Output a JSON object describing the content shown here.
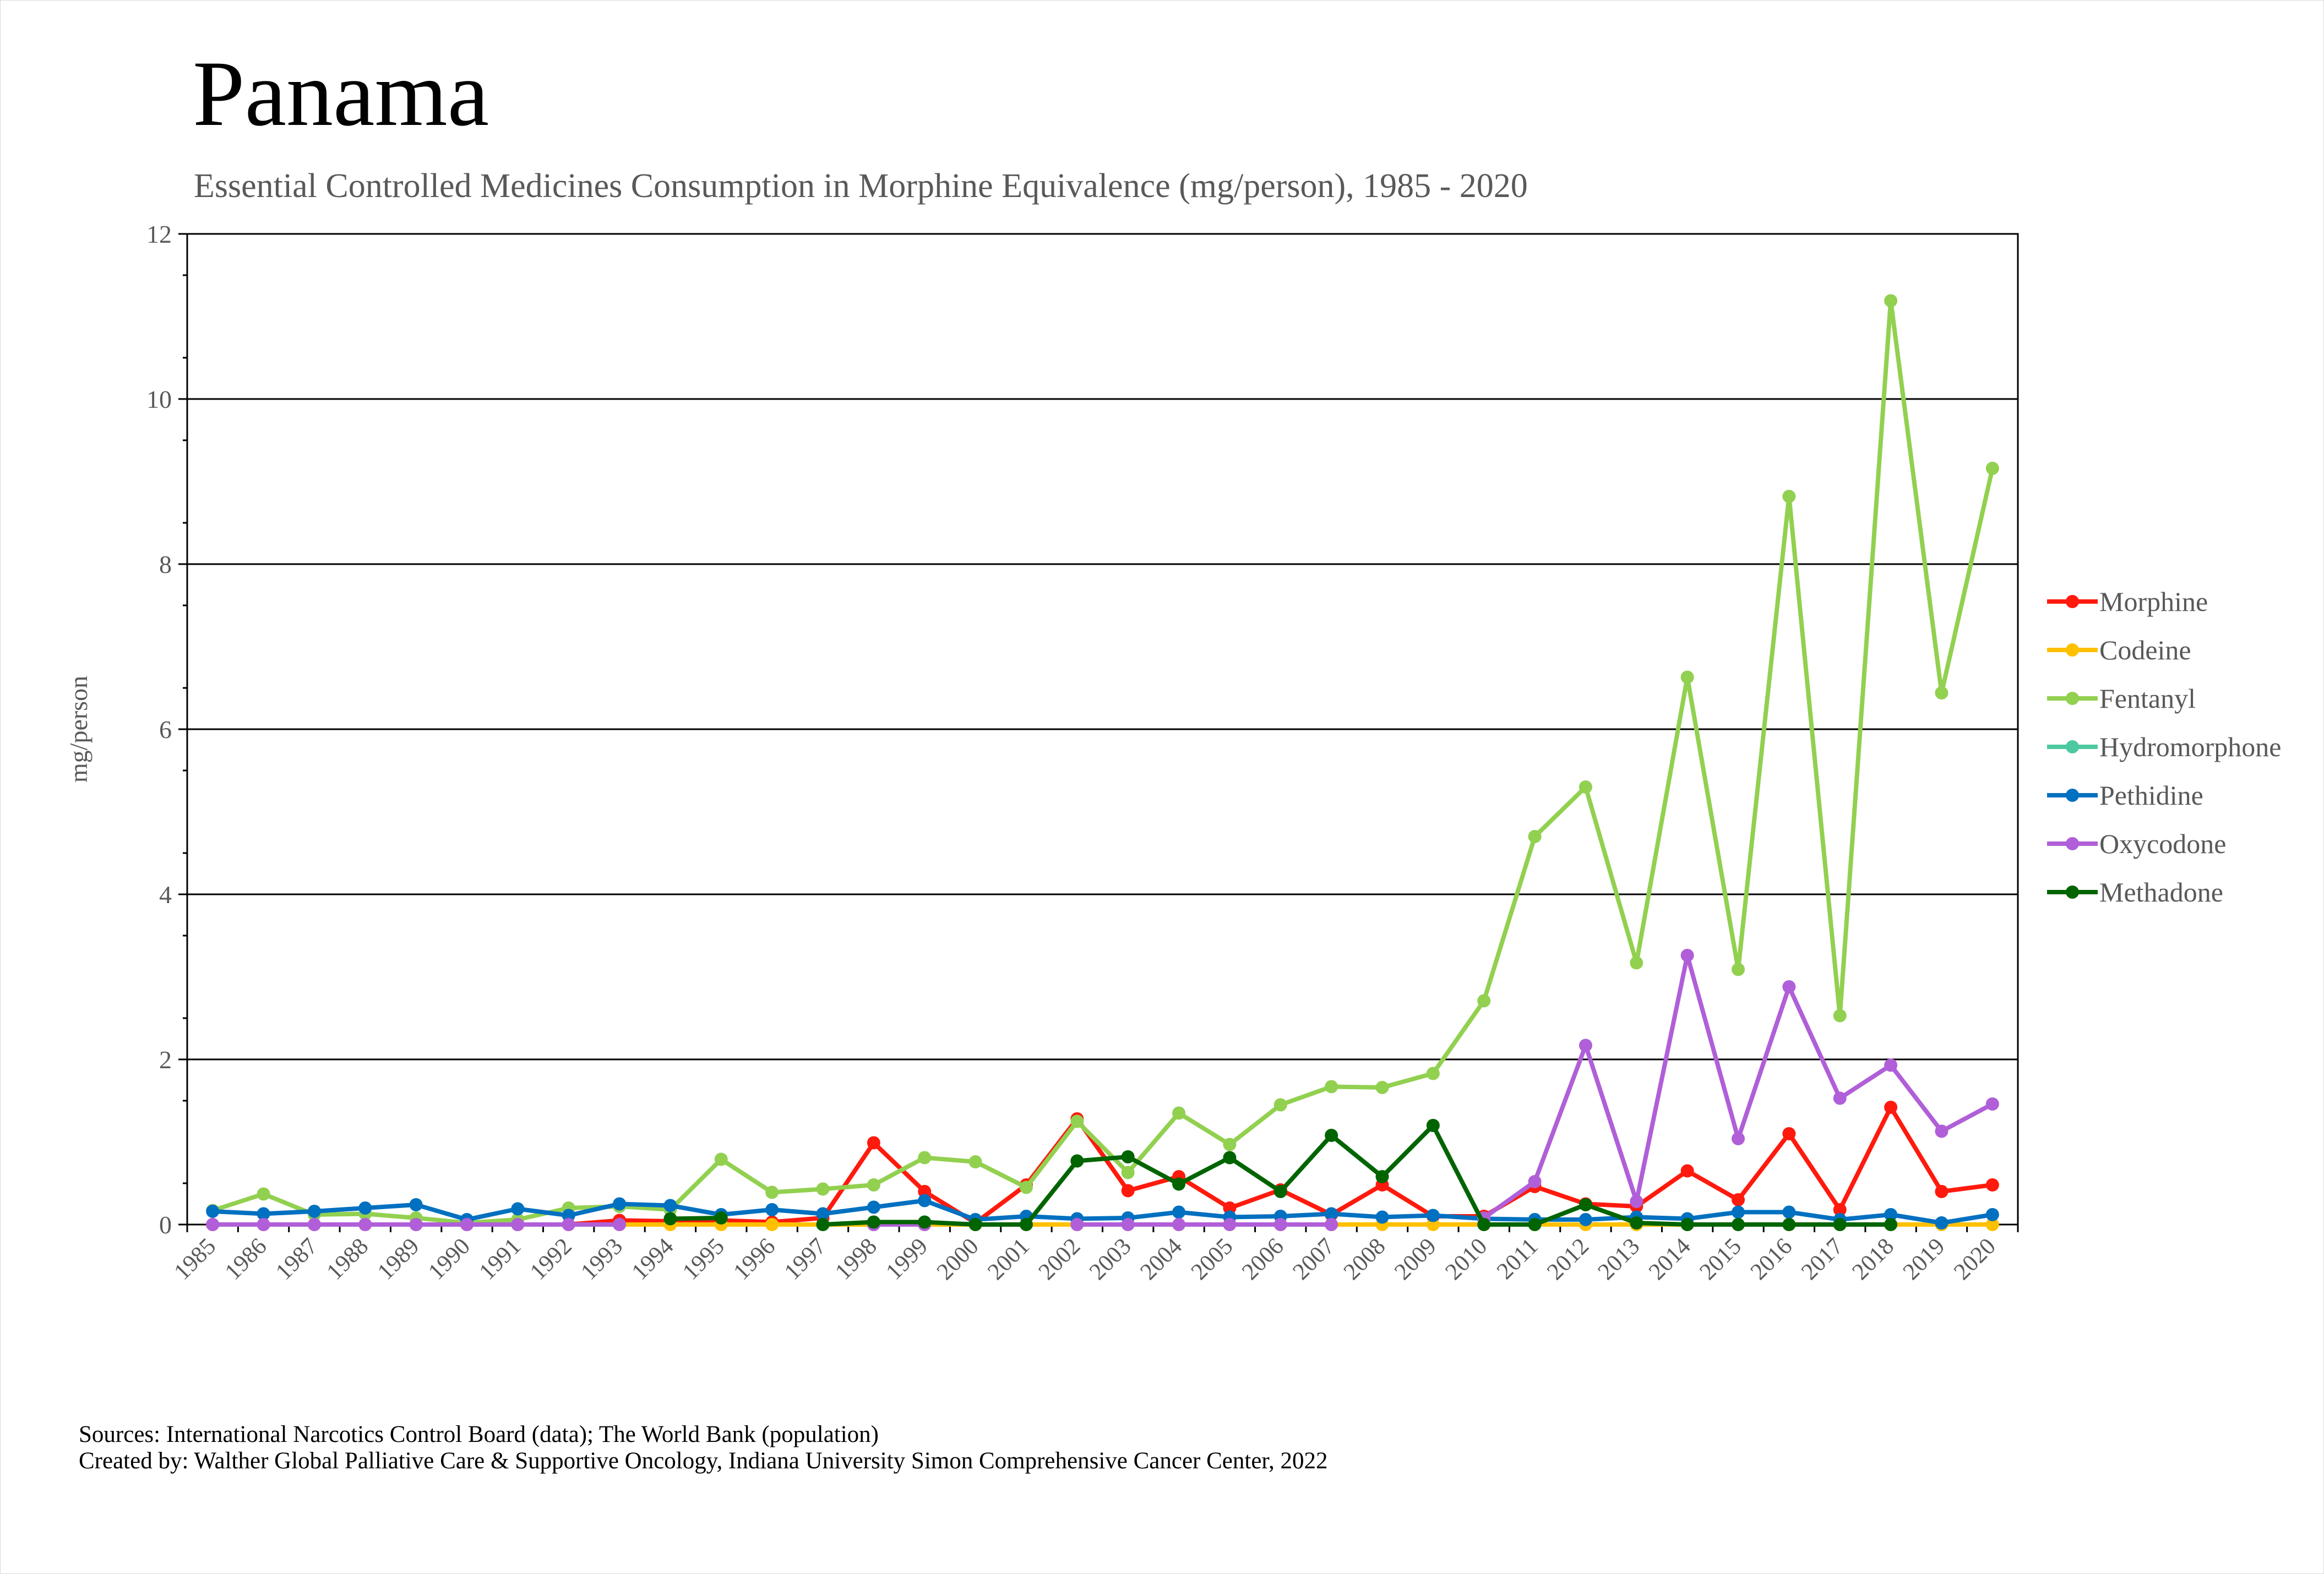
{
  "title": "Panama",
  "subtitle": "Essential Controlled Medicines Consumption in Morphine Equivalence (mg/person), 1985 - 2020",
  "footer": {
    "sources": "Sources: International Narcotics Control Board (data); The World Bank (population)",
    "created_by": "Created by: Walther Global Palliative Care & Supportive Oncology, Indiana University Simon Comprehensive Cancer Center, 2022"
  },
  "chart_data": {
    "type": "line",
    "title": "Panama",
    "subtitle": "Essential Controlled Medicines Consumption in Morphine Equivalence (mg/person), 1985 - 2020",
    "xlabel": "",
    "ylabel": "mg/person",
    "ylim": [
      0,
      12
    ],
    "yticks": [
      0,
      2,
      4,
      6,
      8,
      10,
      12
    ],
    "grid": true,
    "legend_position": "right",
    "categories": [
      "1985",
      "1986",
      "1987",
      "1988",
      "1989",
      "1990",
      "1991",
      "1992",
      "1993",
      "1994",
      "1995",
      "1996",
      "1997",
      "1998",
      "1999",
      "2000",
      "2001",
      "2002",
      "2003",
      "2004",
      "2005",
      "2006",
      "2007",
      "2008",
      "2009",
      "2010",
      "2011",
      "2012",
      "2013",
      "2014",
      "2015",
      "2016",
      "2017",
      "2018",
      "2019",
      "2020"
    ],
    "series": [
      {
        "name": "Morphine",
        "color": "#ff1a0d",
        "values": [
          0,
          0,
          0,
          0,
          0,
          0,
          0,
          0,
          0.05,
          0.04,
          0.05,
          0.03,
          0.08,
          0.99,
          0.4,
          0.02,
          0.48,
          1.28,
          0.41,
          0.58,
          0.2,
          0.42,
          0.12,
          0.48,
          0.1,
          0.1,
          0.46,
          0.25,
          0.22,
          0.65,
          0.3,
          1.1,
          0.18,
          1.42,
          0.4,
          0.48
        ]
      },
      {
        "name": "Codeine",
        "color": "#ffc000",
        "values": [
          null,
          null,
          null,
          null,
          null,
          null,
          null,
          null,
          0,
          0,
          0,
          0,
          0,
          0,
          0,
          0,
          0,
          0,
          0,
          0,
          0,
          0,
          0,
          0,
          0,
          0,
          0,
          0,
          0,
          0,
          0,
          0,
          0,
          0,
          0,
          0
        ]
      },
      {
        "name": "Fentanyl",
        "color": "#92d050",
        "values": [
          0.17,
          0.37,
          0.12,
          0.13,
          0.08,
          0.02,
          0.06,
          0.2,
          0.22,
          0.18,
          0.79,
          0.39,
          0.43,
          0.48,
          0.81,
          0.76,
          0.45,
          1.25,
          0.63,
          1.35,
          0.97,
          1.45,
          1.67,
          1.66,
          1.83,
          2.71,
          4.7,
          5.3,
          3.17,
          6.63,
          3.09,
          8.82,
          2.53,
          11.19,
          6.44,
          9.16
        ]
      },
      {
        "name": "Hydromorphone",
        "color": "#4cc9a0",
        "values": [
          null,
          null,
          null,
          null,
          null,
          null,
          null,
          null,
          null,
          null,
          null,
          null,
          null,
          null,
          null,
          null,
          null,
          null,
          null,
          null,
          null,
          null,
          null,
          null,
          null,
          null,
          null,
          null,
          null,
          null,
          null,
          null,
          null,
          null,
          null,
          null
        ]
      },
      {
        "name": "Pethidine",
        "color": "#0070c0",
        "values": [
          0.16,
          0.13,
          0.16,
          0.2,
          0.24,
          0.06,
          0.19,
          0.11,
          0.25,
          0.23,
          0.12,
          0.18,
          0.13,
          0.21,
          0.29,
          0.06,
          0.1,
          0.07,
          0.08,
          0.15,
          0.09,
          0.1,
          0.13,
          0.09,
          0.11,
          0.07,
          0.06,
          0.06,
          0.09,
          0.07,
          0.15,
          0.15,
          0.06,
          0.12,
          0.02,
          0.12
        ]
      },
      {
        "name": "Oxycodone",
        "color": "#b05fd8",
        "values": [
          0,
          0,
          0,
          0,
          0,
          0,
          0,
          0,
          0,
          null,
          null,
          null,
          null,
          0,
          0,
          null,
          null,
          0,
          0,
          0,
          0,
          0,
          0,
          null,
          null,
          0.08,
          0.52,
          2.17,
          0.28,
          3.26,
          1.04,
          2.88,
          1.53,
          1.93,
          1.13,
          1.46
        ]
      },
      {
        "name": "Methadone",
        "color": "#006400",
        "values": [
          null,
          null,
          null,
          null,
          null,
          null,
          null,
          null,
          null,
          0.07,
          0.08,
          null,
          0,
          0.03,
          0.03,
          0,
          0,
          0.77,
          0.82,
          0.49,
          0.81,
          0.4,
          1.08,
          0.58,
          1.2,
          0,
          0,
          0.24,
          0.02,
          0,
          0,
          0,
          0,
          0,
          null,
          null
        ]
      }
    ]
  }
}
